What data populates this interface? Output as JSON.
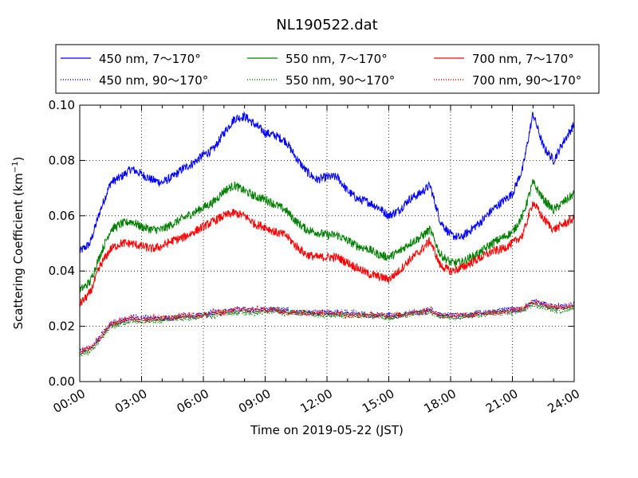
{
  "chart_data": {
    "type": "line",
    "title": "NL190522.dat",
    "xlabel": "Time on 2019-05-22 (JST)",
    "ylabel": "Scattering Coefficient (km",
    "ylabel_sup": "−1",
    "ylabel_end": ")",
    "ylim": [
      0.0,
      0.1
    ],
    "xlim_hours": [
      0,
      24
    ],
    "x_ticks": [
      {
        "hour": 0,
        "label": "00:00"
      },
      {
        "hour": 3,
        "label": "03:00"
      },
      {
        "hour": 6,
        "label": "06:00"
      },
      {
        "hour": 9,
        "label": "09:00"
      },
      {
        "hour": 12,
        "label": "12:00"
      },
      {
        "hour": 15,
        "label": "15:00"
      },
      {
        "hour": 18,
        "label": "18:00"
      },
      {
        "hour": 21,
        "label": "21:00"
      },
      {
        "hour": 24,
        "label": "24:00"
      }
    ],
    "y_ticks": [
      {
        "value": 0.0,
        "label": "0.00"
      },
      {
        "value": 0.02,
        "label": "0.02"
      },
      {
        "value": 0.04,
        "label": "0.04"
      },
      {
        "value": 0.06,
        "label": "0.06"
      },
      {
        "value": 0.08,
        "label": "0.08"
      },
      {
        "value": 0.1,
        "label": "0.10"
      }
    ],
    "grid": true,
    "legend_position": "top, above plot",
    "x": [
      0,
      0.5,
      1,
      1.5,
      2,
      2.5,
      3,
      3.5,
      4,
      4.5,
      5,
      5.5,
      6,
      6.5,
      7,
      7.5,
      8,
      8.5,
      9,
      9.5,
      10,
      10.5,
      11,
      11.5,
      12,
      12.5,
      13,
      13.5,
      14,
      14.5,
      15,
      15.5,
      16,
      16.5,
      17,
      17.5,
      18,
      18.5,
      19,
      19.5,
      20,
      20.5,
      21,
      21.5,
      22,
      22.5,
      23,
      23.5,
      24
    ],
    "series": [
      {
        "name": "450 nm, 7～170°",
        "color": "#0000ff",
        "style": "solid",
        "values": [
          0.047,
          0.05,
          0.062,
          0.072,
          0.074,
          0.077,
          0.075,
          0.073,
          0.072,
          0.074,
          0.077,
          0.079,
          0.082,
          0.084,
          0.09,
          0.095,
          0.096,
          0.093,
          0.09,
          0.089,
          0.087,
          0.081,
          0.076,
          0.073,
          0.074,
          0.074,
          0.069,
          0.066,
          0.065,
          0.063,
          0.06,
          0.062,
          0.066,
          0.068,
          0.071,
          0.058,
          0.053,
          0.052,
          0.055,
          0.058,
          0.062,
          0.065,
          0.068,
          0.077,
          0.097,
          0.085,
          0.08,
          0.087,
          0.093
        ]
      },
      {
        "name": "550 nm, 7～170°",
        "color": "#008000",
        "style": "solid",
        "values": [
          0.033,
          0.036,
          0.046,
          0.055,
          0.057,
          0.058,
          0.056,
          0.055,
          0.055,
          0.057,
          0.059,
          0.061,
          0.063,
          0.065,
          0.069,
          0.071,
          0.069,
          0.067,
          0.066,
          0.064,
          0.062,
          0.058,
          0.055,
          0.054,
          0.053,
          0.053,
          0.051,
          0.049,
          0.048,
          0.046,
          0.045,
          0.047,
          0.05,
          0.052,
          0.055,
          0.046,
          0.043,
          0.043,
          0.045,
          0.047,
          0.05,
          0.052,
          0.054,
          0.06,
          0.072,
          0.066,
          0.062,
          0.065,
          0.068
        ]
      },
      {
        "name": "700 nm, 7～170°",
        "color": "#ff0000",
        "style": "solid",
        "values": [
          0.028,
          0.032,
          0.042,
          0.048,
          0.05,
          0.05,
          0.049,
          0.048,
          0.049,
          0.051,
          0.052,
          0.054,
          0.056,
          0.058,
          0.06,
          0.061,
          0.06,
          0.057,
          0.056,
          0.054,
          0.053,
          0.049,
          0.046,
          0.045,
          0.045,
          0.045,
          0.043,
          0.041,
          0.039,
          0.038,
          0.037,
          0.04,
          0.044,
          0.047,
          0.051,
          0.042,
          0.04,
          0.041,
          0.043,
          0.045,
          0.047,
          0.048,
          0.05,
          0.053,
          0.065,
          0.059,
          0.055,
          0.057,
          0.059
        ]
      },
      {
        "name": "450 nm, 90～170°",
        "color": "#0000ff",
        "style": "dotted",
        "values": [
          0.011,
          0.012,
          0.016,
          0.021,
          0.022,
          0.023,
          0.023,
          0.023,
          0.023,
          0.023,
          0.024,
          0.024,
          0.024,
          0.025,
          0.025,
          0.026,
          0.026,
          0.026,
          0.026,
          0.026,
          0.026,
          0.025,
          0.025,
          0.025,
          0.025,
          0.025,
          0.025,
          0.025,
          0.024,
          0.024,
          0.024,
          0.024,
          0.025,
          0.025,
          0.026,
          0.024,
          0.024,
          0.024,
          0.024,
          0.025,
          0.025,
          0.026,
          0.026,
          0.026,
          0.029,
          0.028,
          0.027,
          0.027,
          0.028
        ]
      },
      {
        "name": "550 nm, 90～170°",
        "color": "#008000",
        "style": "dotted",
        "values": [
          0.01,
          0.011,
          0.015,
          0.02,
          0.021,
          0.022,
          0.022,
          0.022,
          0.022,
          0.023,
          0.023,
          0.023,
          0.024,
          0.024,
          0.025,
          0.025,
          0.025,
          0.025,
          0.025,
          0.026,
          0.025,
          0.025,
          0.025,
          0.024,
          0.024,
          0.024,
          0.024,
          0.024,
          0.024,
          0.024,
          0.023,
          0.024,
          0.024,
          0.025,
          0.025,
          0.024,
          0.023,
          0.023,
          0.024,
          0.024,
          0.025,
          0.025,
          0.025,
          0.026,
          0.028,
          0.027,
          0.026,
          0.026,
          0.027
        ]
      },
      {
        "name": "700 nm, 90～170°",
        "color": "#ff0000",
        "style": "dotted",
        "values": [
          0.011,
          0.012,
          0.016,
          0.021,
          0.022,
          0.023,
          0.022,
          0.023,
          0.023,
          0.023,
          0.024,
          0.024,
          0.024,
          0.025,
          0.025,
          0.026,
          0.026,
          0.026,
          0.026,
          0.026,
          0.025,
          0.025,
          0.025,
          0.025,
          0.025,
          0.025,
          0.024,
          0.024,
          0.024,
          0.024,
          0.024,
          0.024,
          0.025,
          0.025,
          0.026,
          0.024,
          0.024,
          0.024,
          0.024,
          0.025,
          0.025,
          0.025,
          0.026,
          0.026,
          0.029,
          0.028,
          0.027,
          0.027,
          0.028
        ]
      }
    ],
    "legend_order": [
      0,
      1,
      2,
      3,
      4,
      5
    ]
  }
}
